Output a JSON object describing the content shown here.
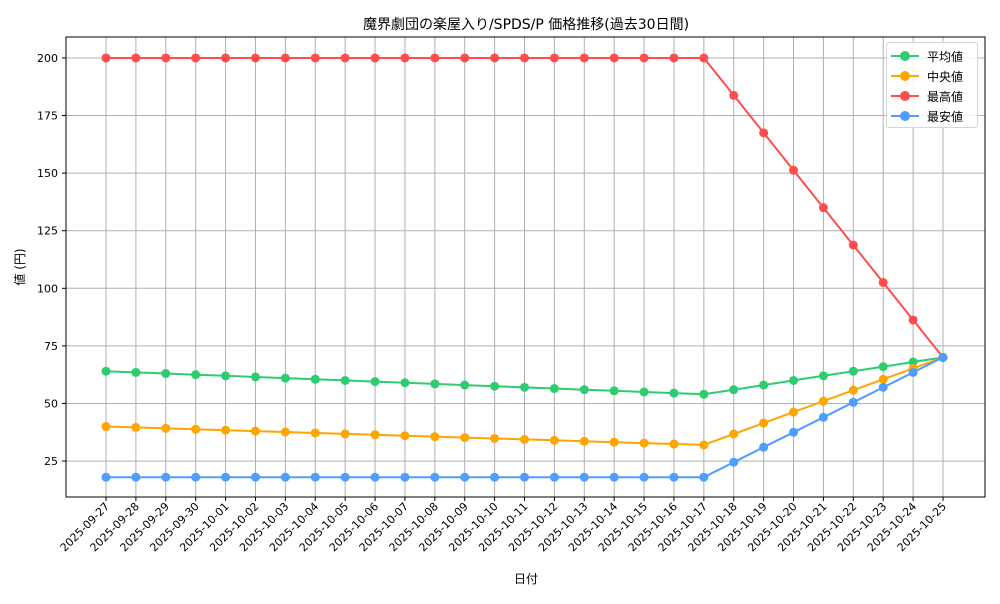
{
  "chart_data": {
    "type": "line",
    "title": "魔界劇団の楽屋入り/SPDS/P 価格推移(過去30日間)",
    "xlabel": "日付",
    "ylabel": "値 (円)",
    "ylim": [
      9.4,
      209.1
    ],
    "yticks": [
      25,
      50,
      75,
      100,
      125,
      150,
      175,
      200
    ],
    "grid": true,
    "legend_position": "upper right",
    "categories": [
      "2025-09-27",
      "2025-09-28",
      "2025-09-29",
      "2025-09-30",
      "2025-10-01",
      "2025-10-02",
      "2025-10-03",
      "2025-10-04",
      "2025-10-05",
      "2025-10-06",
      "2025-10-07",
      "2025-10-08",
      "2025-10-09",
      "2025-10-10",
      "2025-10-11",
      "2025-10-12",
      "2025-10-13",
      "2025-10-14",
      "2025-10-15",
      "2025-10-16",
      "2025-10-17",
      "2025-10-18",
      "2025-10-19",
      "2025-10-20",
      "2025-10-21",
      "2025-10-22",
      "2025-10-23",
      "2025-10-24",
      "2025-10-25"
    ],
    "series": [
      {
        "name": "平均値",
        "color": "#2ecc71",
        "values": [
          64.0,
          63.5,
          63.0,
          62.5,
          62.0,
          61.5,
          61.0,
          60.5,
          60.0,
          59.5,
          59.0,
          58.5,
          58.0,
          57.5,
          57.0,
          56.5,
          56.0,
          55.5,
          55.0,
          54.5,
          54.0,
          56.0,
          58.0,
          60.0,
          62.0,
          64.0,
          66.0,
          68.0,
          70.0
        ]
      },
      {
        "name": "中央値",
        "color": "#ffa500",
        "values": [
          40.0,
          39.6,
          39.2,
          38.8,
          38.4,
          38.0,
          37.6,
          37.2,
          36.8,
          36.4,
          36.0,
          35.6,
          35.2,
          34.8,
          34.4,
          34.0,
          33.6,
          33.2,
          32.8,
          32.4,
          32.0,
          36.75,
          41.5,
          46.25,
          51.0,
          55.75,
          60.5,
          65.25,
          70.0
        ]
      },
      {
        "name": "最高値",
        "color": "#ff4d4d",
        "values": [
          200,
          200,
          200,
          200,
          200,
          200,
          200,
          200,
          200,
          200,
          200,
          200,
          200,
          200,
          200,
          200,
          200,
          200,
          200,
          200,
          200,
          183.75,
          167.5,
          151.25,
          135.0,
          118.75,
          102.5,
          86.25,
          70.0
        ]
      },
      {
        "name": "最安値",
        "color": "#4d9eff",
        "values": [
          18,
          18,
          18,
          18,
          18,
          18,
          18,
          18,
          18,
          18,
          18,
          18,
          18,
          18,
          18,
          18,
          18,
          18,
          18,
          18,
          18,
          24.5,
          31.0,
          37.5,
          44.0,
          50.5,
          57.0,
          63.5,
          70.0
        ]
      }
    ]
  }
}
